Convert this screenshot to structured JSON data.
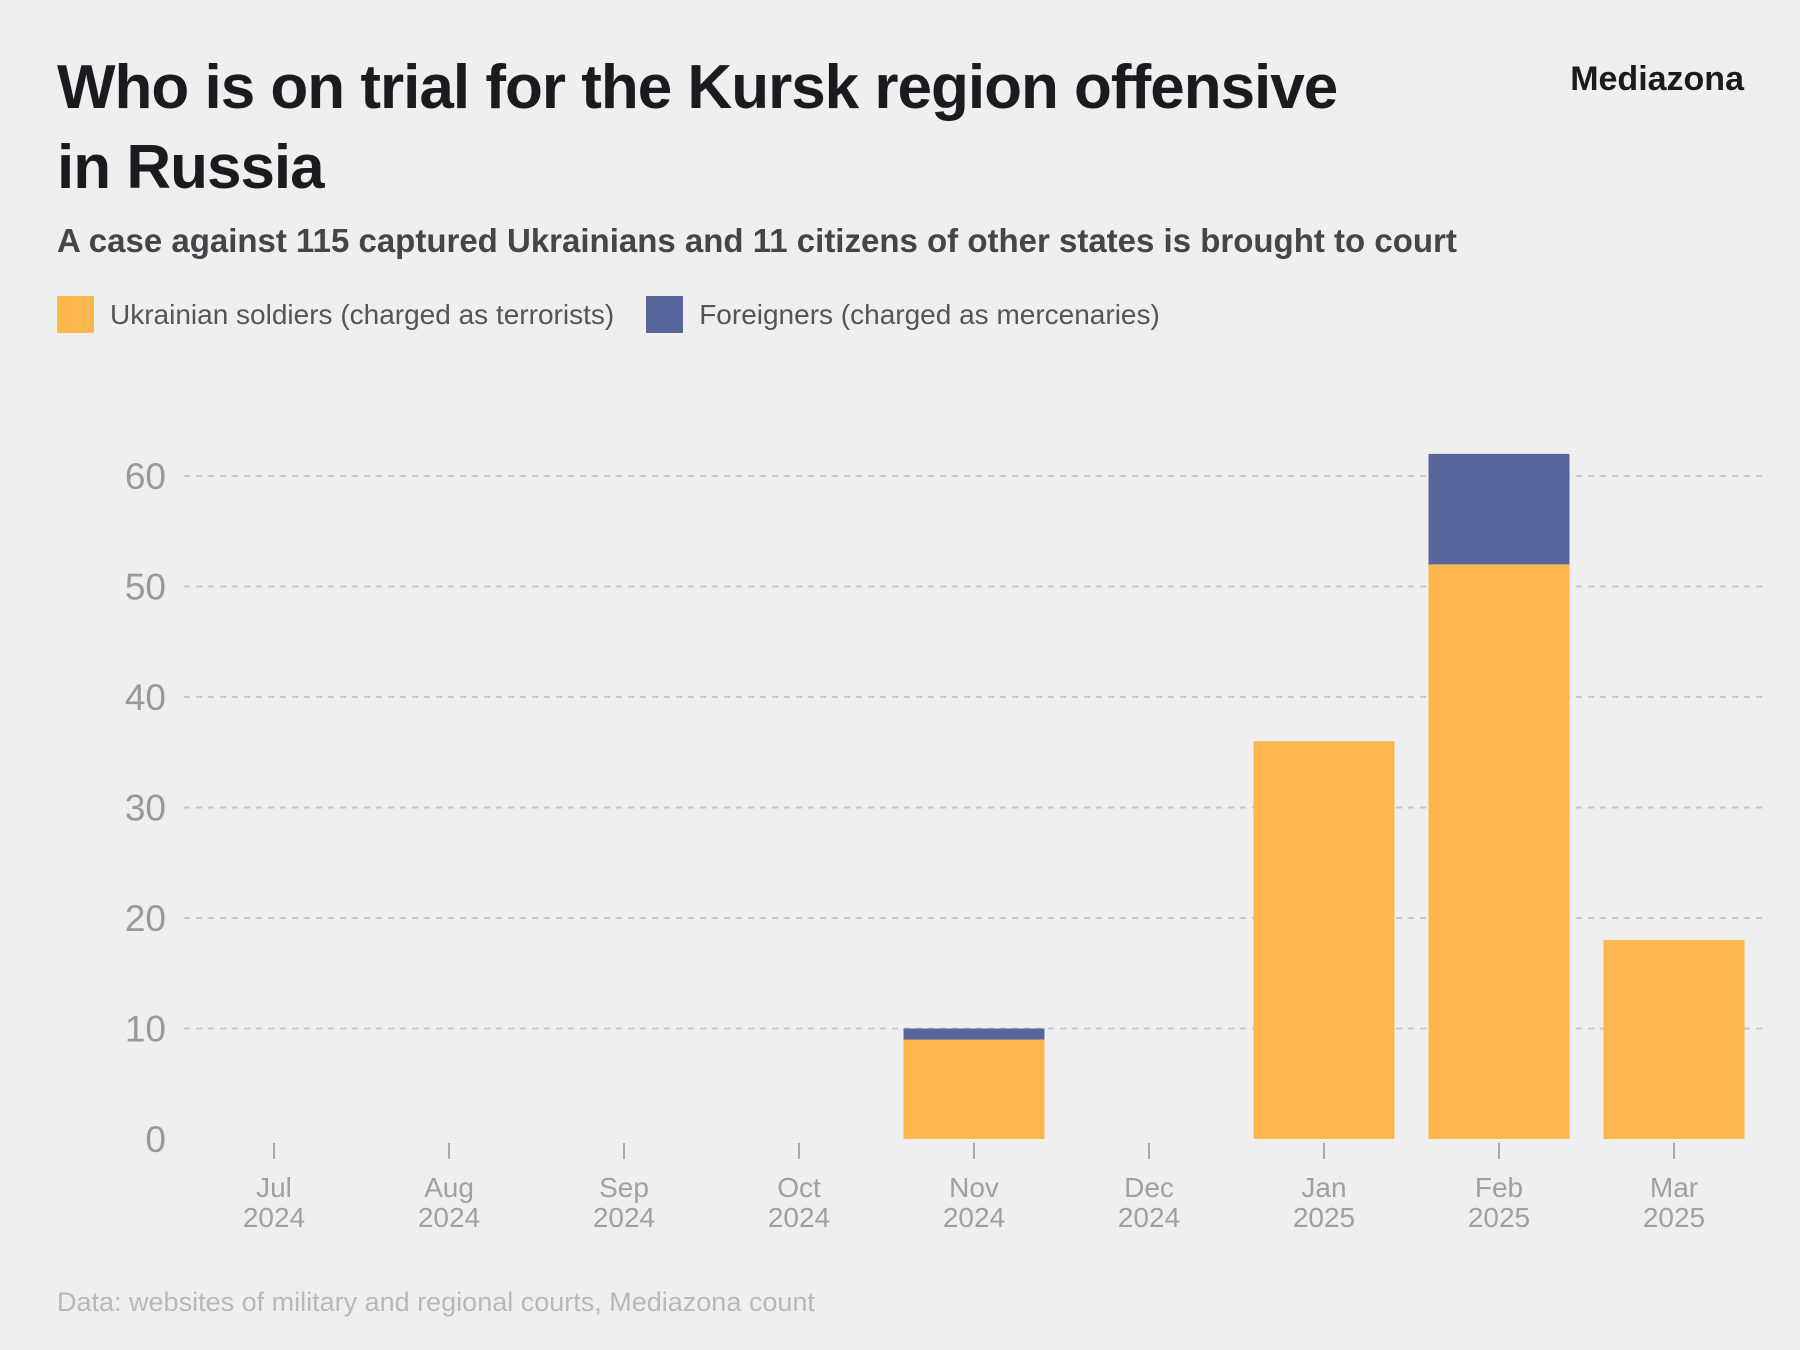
{
  "header": {
    "title": "Who is on trial for the Kursk region offensive in Russia",
    "brand": "Mediazona",
    "subtitle": "A case against 115 captured Ukrainians and 11 citizens of other states is brought to court"
  },
  "footer": {
    "source": "Data: websites of military and regional courts, Mediazona count"
  },
  "chart_data": {
    "type": "bar",
    "stacked": true,
    "title": "Who is on trial for the Kursk region offensive in Russia",
    "categories": [
      {
        "month": "Jul",
        "year": "2024"
      },
      {
        "month": "Aug",
        "year": "2024"
      },
      {
        "month": "Sep",
        "year": "2024"
      },
      {
        "month": "Oct",
        "year": "2024"
      },
      {
        "month": "Nov",
        "year": "2024"
      },
      {
        "month": "Dec",
        "year": "2024"
      },
      {
        "month": "Jan",
        "year": "2025"
      },
      {
        "month": "Feb",
        "year": "2025"
      },
      {
        "month": "Mar",
        "year": "2025"
      }
    ],
    "series": [
      {
        "name": "Ukrainian soldiers (charged as terrorists)",
        "color": "#fbb74d",
        "values": [
          0,
          0,
          0,
          0,
          9,
          0,
          36,
          52,
          18
        ]
      },
      {
        "name": "Foreigners (charged as mercenaries)",
        "color": "#56669b",
        "values": [
          0,
          0,
          0,
          0,
          1,
          0,
          0,
          10,
          0
        ]
      }
    ],
    "yticks": [
      0,
      10,
      20,
      30,
      40,
      50,
      60
    ],
    "ylim": [
      0,
      62
    ],
    "xlabel": "",
    "ylabel": "",
    "grid": true,
    "legend_position": "top-left"
  }
}
